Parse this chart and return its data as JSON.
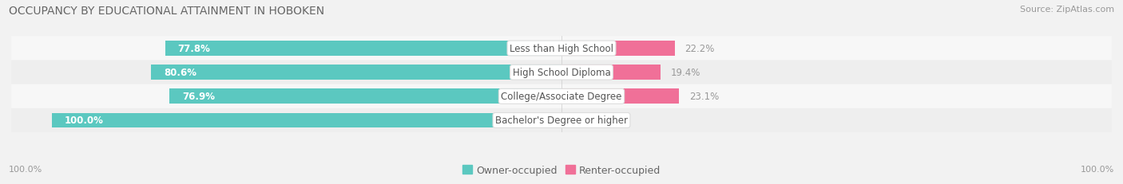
{
  "title": "OCCUPANCY BY EDUCATIONAL ATTAINMENT IN HOBOKEN",
  "source": "Source: ZipAtlas.com",
  "categories": [
    "Less than High School",
    "High School Diploma",
    "College/Associate Degree",
    "Bachelor's Degree or higher"
  ],
  "owner_values": [
    77.8,
    80.6,
    76.9,
    100.0
  ],
  "renter_values": [
    22.2,
    19.4,
    23.1,
    0.0
  ],
  "owner_color": "#5BC8C0",
  "renter_color": "#F07098",
  "renter_color_light": "#F4AABF",
  "row_colors": [
    "#f7f7f7",
    "#eeeeee",
    "#f7f7f7",
    "#eeeeee"
  ],
  "title_fontsize": 10,
  "source_fontsize": 8,
  "bar_label_fontsize": 8.5,
  "cat_label_fontsize": 8.5,
  "legend_fontsize": 9,
  "tick_fontsize": 8,
  "bar_height": 0.62,
  "total_width": 100.0,
  "left_label": "100.0%",
  "right_label": "100.0%"
}
